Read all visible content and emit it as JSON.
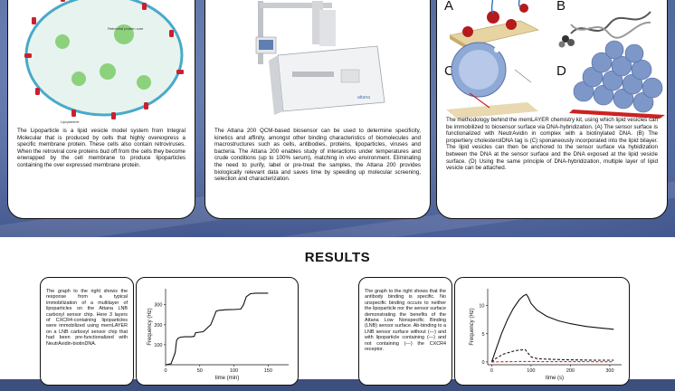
{
  "lipoparticle": {
    "labels": {
      "core": "Retroviral protein core",
      "particle": "Lipoparticle"
    },
    "text": "The Lipoparticle is a lipid vesicle model system from Integral Molecular that is produced by cells that highly overexpress a specific membrane protein. These cells also contain retroviruses. When the retroviral core proteins bud off from the cells they become enwrapped by the cell membrane to produce lipoparticles containing the over expressed membrane protein."
  },
  "attana": {
    "logo_text": "attana",
    "text": "The Attana 200 QCM-based biosensor can be used to determine specificity, kinetics and affinity, amongst other binding characteristics of biomolecules and macrostructures such as cells, antibodies, proteins, lipoparticles, viruses and bacteria. The Attana 200 enables study of interactions under temperatures and crude conditions (up to 100% serum), matching in vivo environment. Eliminating the need to purify, label or pre-treat the samples, the Attana 200 provides biologically relevant data and saves time by speeding up molecular screening, selection and characterization."
  },
  "memlayer": {
    "panel_letters": [
      "A",
      "B",
      "C",
      "D"
    ],
    "text": "The methodology behind the memLAYER chemistry kit, using which lipid vesicles can be immobilized to biosensor surface via DNA-hybridization. (A) The sensor surface is functionalized with NeutrAvidin in complex with a biotinylated DNA. (B) The propertiery cholesterolDNA tag is (C) sponaneously incorporated into the lipid bilayer. The lipid vesicles can then be anchored to the sensor surface via hybidization between the DNA at the sensor surface and the DNA exposed at the lipid vesicle surface. (D) Using the same principle of DNA-hybridization, multiple layer of lipid vesicle can be attached."
  },
  "results": {
    "title": "RESULTS",
    "desc1": "The graph to the right shows the response from a typical immobilization of a multilayer of lipoparticles on the Attana LNB carboxyl sensor chip. Here 3 layers of CXCR4-containing lipoparticles were immobilized using memLAYER on a LNB carboxyl sensor chip that had been pre-functionalized with NeutrAvidin-biotinDNA.",
    "desc2_a": "The graph to the right shows that the antibody binding is specific. No unspecific binding occurs to neither the lipoparticle nor the sensor surface demonstrating the benefits of the Attana Low Nonspecific Binding (LNB) sensor surface. Ab-binding to a LNB sensor surface without (",
    "desc2_red": "---",
    "desc2_b": ") and with lipoparticle containing (—) and not containing (---) the CXCR4 receptor."
  },
  "chart_data": [
    {
      "type": "line",
      "title": "",
      "xlabel": "time (min)",
      "ylabel": "Frequency (Hz)",
      "xlim": [
        0,
        180
      ],
      "ylim": [
        0,
        380
      ],
      "x_ticks": [
        0,
        50,
        100,
        150
      ],
      "y_ticks": [
        100,
        200,
        300
      ],
      "grid": false,
      "series": [
        {
          "color": "#111111",
          "x": [
            0,
            8,
            14,
            16,
            18,
            22,
            28,
            34,
            38,
            42,
            44,
            55,
            66,
            72,
            74,
            78,
            88,
            100,
            110,
            114,
            118,
            124,
            132,
            150
          ],
          "y": [
            0,
            5,
            60,
            120,
            132,
            138,
            140,
            140,
            140,
            142,
            160,
            165,
            200,
            250,
            268,
            272,
            275,
            276,
            278,
            300,
            340,
            355,
            358,
            358
          ]
        }
      ]
    },
    {
      "type": "line",
      "title": "",
      "xlabel": "time (s)",
      "ylabel": "Frequency (Hz)",
      "xlim": [
        -10,
        330
      ],
      "ylim": [
        -0.5,
        13
      ],
      "x_ticks": [
        0,
        100,
        200,
        300
      ],
      "y_ticks": [
        0,
        5,
        10
      ],
      "grid": false,
      "series": [
        {
          "color": "#111111",
          "style": "solid",
          "x": [
            0,
            10,
            25,
            40,
            55,
            70,
            80,
            88,
            92,
            100,
            115,
            140,
            170,
            200,
            240,
            280,
            310
          ],
          "y": [
            0,
            2,
            5,
            7.5,
            9.5,
            11,
            11.7,
            12,
            11.6,
            10.4,
            9.2,
            8.1,
            7.3,
            6.8,
            6.3,
            6.0,
            5.8
          ]
        },
        {
          "color": "#111111",
          "style": "dashed",
          "x": [
            0,
            10,
            30,
            60,
            85,
            92,
            100,
            115,
            140,
            180,
            220,
            260,
            310
          ],
          "y": [
            0,
            0.6,
            1.4,
            2.0,
            2.2,
            1.6,
            0.9,
            0.6,
            0.5,
            0.4,
            0.35,
            0.3,
            0.3
          ]
        },
        {
          "color": "#dd2222",
          "style": "dashed",
          "x": [
            0,
            40,
            90,
            150,
            220,
            310
          ],
          "y": [
            0,
            0.05,
            0.08,
            0.05,
            0.04,
            0.03
          ]
        }
      ]
    }
  ]
}
